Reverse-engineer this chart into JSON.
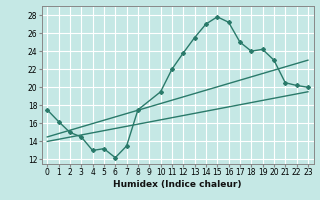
{
  "xlabel": "Humidex (Indice chaleur)",
  "ylabel": "",
  "bg_color": "#c5e8e5",
  "grid_color": "#b0d8d5",
  "line_color": "#2a7a6a",
  "xlim": [
    -0.5,
    23.5
  ],
  "ylim": [
    11.5,
    29.0
  ],
  "xticks": [
    0,
    1,
    2,
    3,
    4,
    5,
    6,
    7,
    8,
    9,
    10,
    11,
    12,
    13,
    14,
    15,
    16,
    17,
    18,
    19,
    20,
    21,
    22,
    23
  ],
  "yticks": [
    12,
    14,
    16,
    18,
    20,
    22,
    24,
    26,
    28
  ],
  "line1_x": [
    0,
    1,
    2,
    3,
    4,
    5,
    6,
    7,
    8,
    10,
    11,
    12,
    13,
    14,
    15,
    16,
    17,
    18,
    19,
    20,
    21,
    22,
    23
  ],
  "line1_y": [
    17.5,
    16.2,
    15.0,
    14.5,
    13.0,
    13.2,
    12.2,
    13.5,
    17.5,
    19.5,
    22.0,
    23.8,
    25.5,
    27.0,
    27.8,
    27.2,
    25.0,
    24.0,
    24.2,
    23.0,
    20.5,
    20.2,
    20.0
  ],
  "line2_x": [
    0,
    23
  ],
  "line2_y": [
    14.5,
    23.0
  ],
  "line3_x": [
    0,
    23
  ],
  "line3_y": [
    14.0,
    19.5
  ]
}
